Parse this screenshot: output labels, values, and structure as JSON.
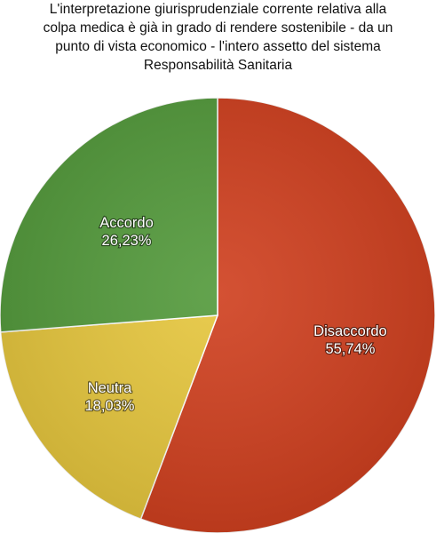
{
  "title_lines": [
    "L'interpretazione giurisprudenziale corrente relativa alla",
    "colpa medica è già in grado di rendere sostenibile - da un",
    "punto di vista economico - l'intero assetto del sistema",
    "Responsabilità Sanitaria"
  ],
  "chart_data": {
    "type": "pie",
    "title": "L'interpretazione giurisprudenziale corrente relativa alla colpa medica è già in grado di rendere sostenibile - da un punto di vista economico - l'intero assetto del sistema Responsabilità Sanitaria",
    "slices": [
      {
        "name": "Disaccordo",
        "value": 55.74,
        "label": "55,74%",
        "color": "#cf3e1d"
      },
      {
        "name": "Neutra",
        "value": 18.03,
        "label": "18,03%",
        "color": "#e6c63c"
      },
      {
        "name": "Accordo",
        "value": 26.23,
        "label": "26,23%",
        "color": "#52993a"
      }
    ],
    "start": "top",
    "direction": "clockwise",
    "legend": "none"
  }
}
